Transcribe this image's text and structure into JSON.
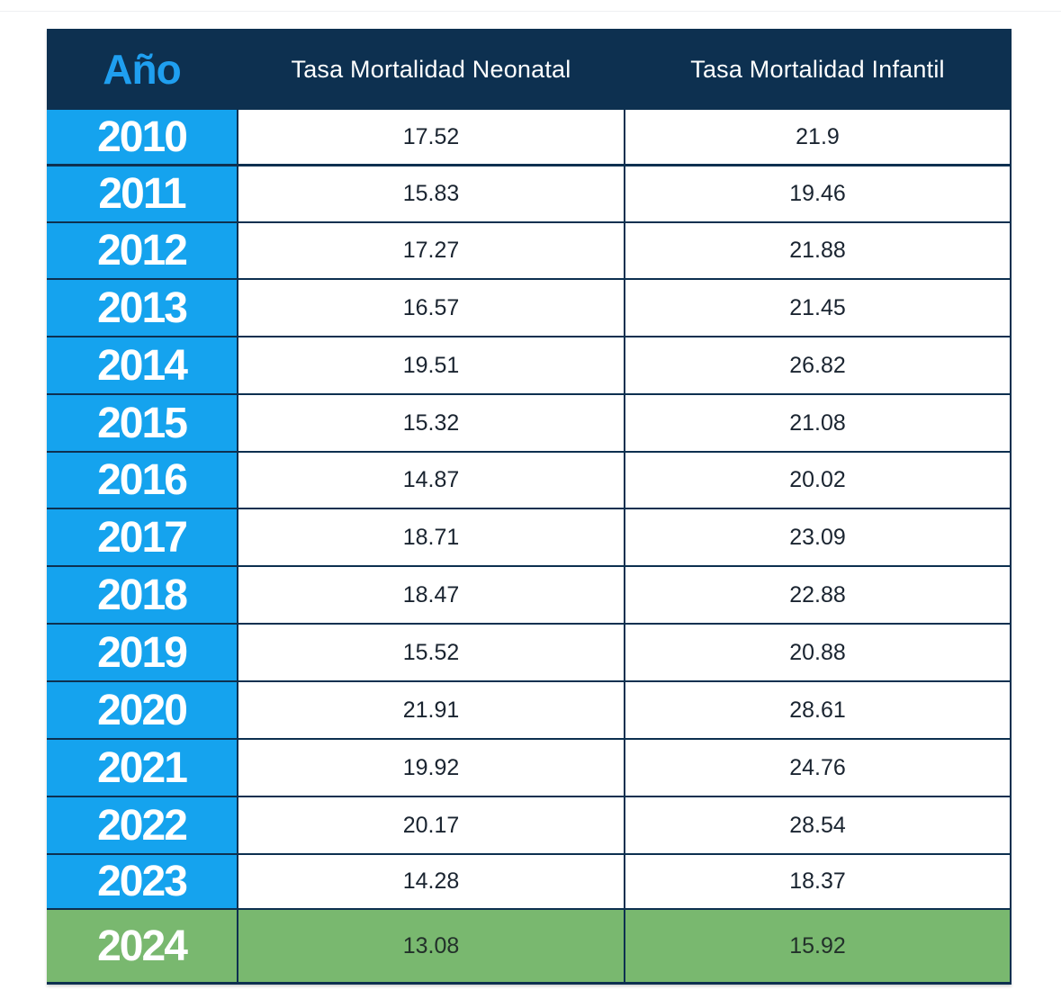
{
  "chart_data": {
    "type": "table",
    "columns": [
      "Año",
      "Tasa Mortalidad Neonatal",
      "Tasa Mortalidad Infantil"
    ],
    "rows": [
      {
        "year": "2010",
        "neonatal": "17.52",
        "infantil": "21.9"
      },
      {
        "year": "2011",
        "neonatal": "15.83",
        "infantil": "19.46"
      },
      {
        "year": "2012",
        "neonatal": "17.27",
        "infantil": "21.88"
      },
      {
        "year": "2013",
        "neonatal": "16.57",
        "infantil": "21.45"
      },
      {
        "year": "2014",
        "neonatal": "19.51",
        "infantil": "26.82"
      },
      {
        "year": "2015",
        "neonatal": "15.32",
        "infantil": "21.08"
      },
      {
        "year": "2016",
        "neonatal": "14.87",
        "infantil": "20.02"
      },
      {
        "year": "2017",
        "neonatal": "18.71",
        "infantil": "23.09"
      },
      {
        "year": "2018",
        "neonatal": "18.47",
        "infantil": "22.88"
      },
      {
        "year": "2019",
        "neonatal": "15.52",
        "infantil": "20.88"
      },
      {
        "year": "2020",
        "neonatal": "21.91",
        "infantil": "28.61"
      },
      {
        "year": "2021",
        "neonatal": "19.92",
        "infantil": "24.76"
      },
      {
        "year": "2022",
        "neonatal": "20.17",
        "infantil": "28.54"
      },
      {
        "year": "2023",
        "neonatal": "14.28",
        "infantil": "18.37"
      },
      {
        "year": "2024",
        "neonatal": "13.08",
        "infantil": "15.92",
        "highlight": true
      }
    ]
  },
  "colors": {
    "header_bg": "#0d3050",
    "header_year_text": "#1f9ff0",
    "year_bg": "#15a3ee",
    "highlight_bg": "#79b86f",
    "grid_line": "#0d3050"
  }
}
